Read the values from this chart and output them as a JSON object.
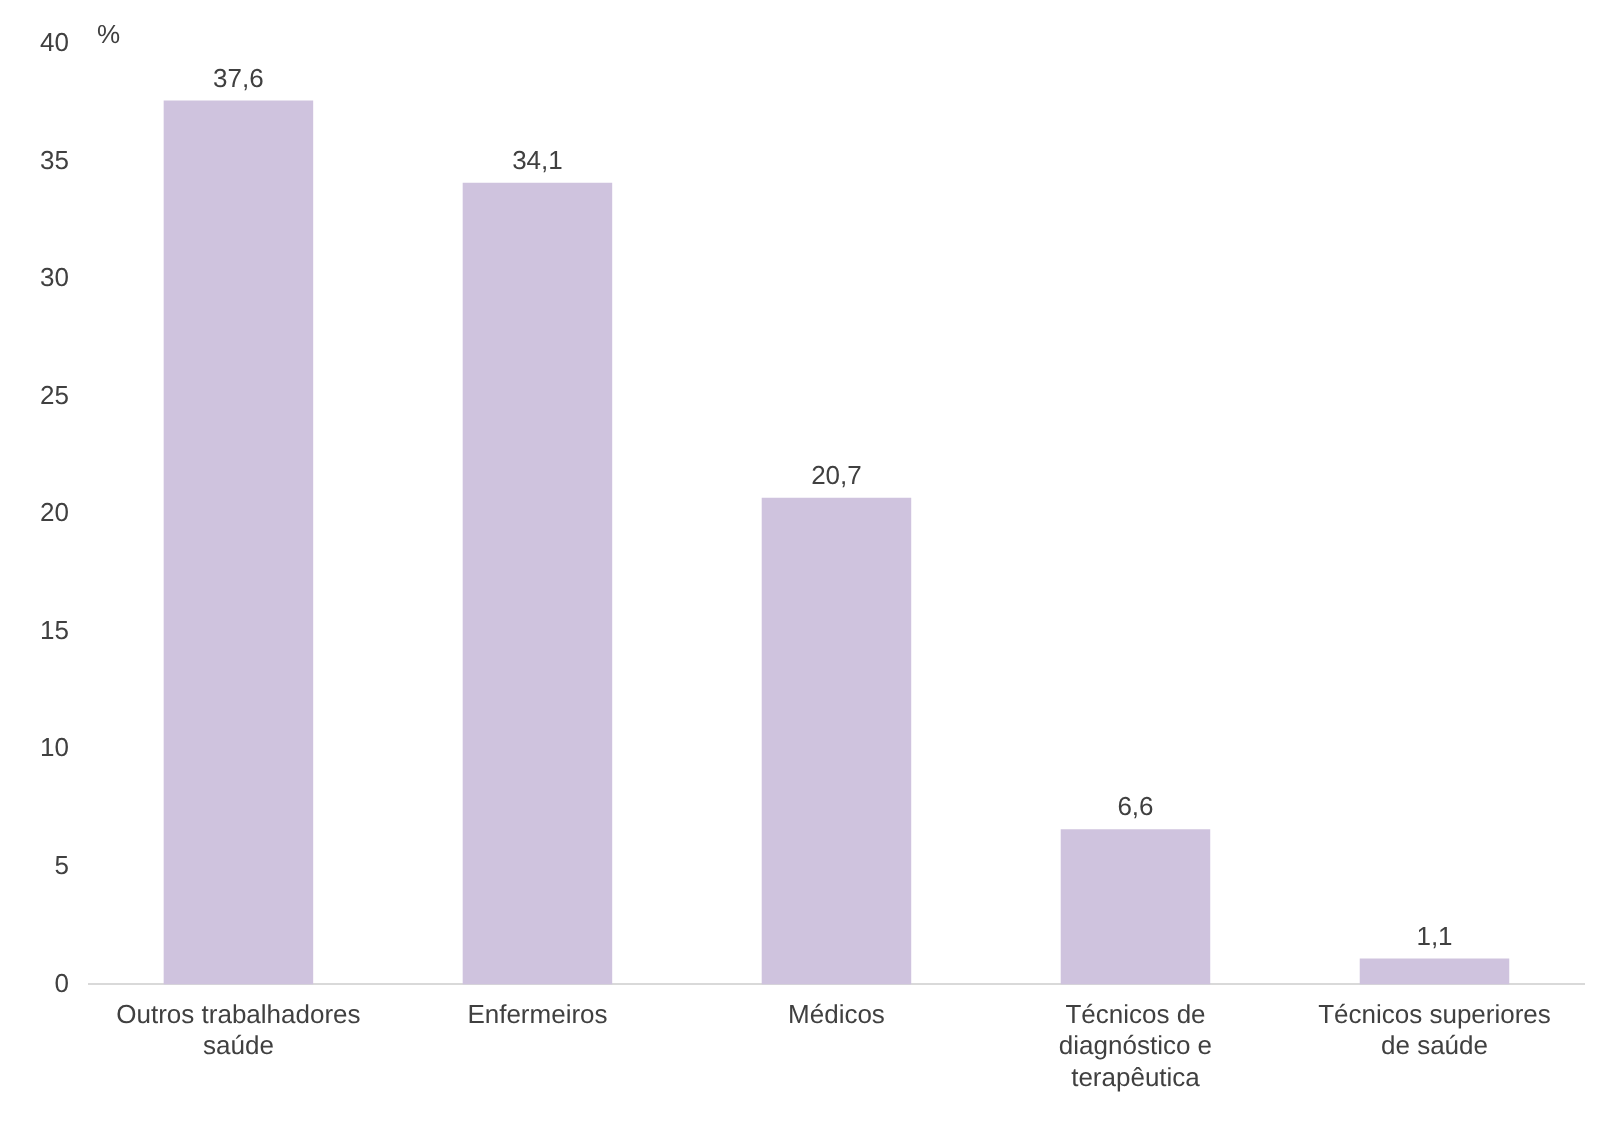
{
  "chart_data": {
    "type": "bar",
    "ylabel": "%",
    "categories": [
      "Outros trabalhadores saúde",
      "Enfermeiros",
      "Médicos",
      "Técnicos de diagnóstico e terapêutica",
      "Técnicos superiores de saúde"
    ],
    "values": [
      37.6,
      34.1,
      20.7,
      6.6,
      1.1
    ],
    "value_labels": [
      "37,6",
      "34,1",
      "20,7",
      "6,6",
      "1,1"
    ],
    "color": "#cfc3de",
    "ylim": [
      0,
      40
    ],
    "yticks": [
      0,
      5,
      10,
      15,
      20,
      25,
      30,
      35,
      40
    ],
    "grid": false,
    "legend": false
  }
}
